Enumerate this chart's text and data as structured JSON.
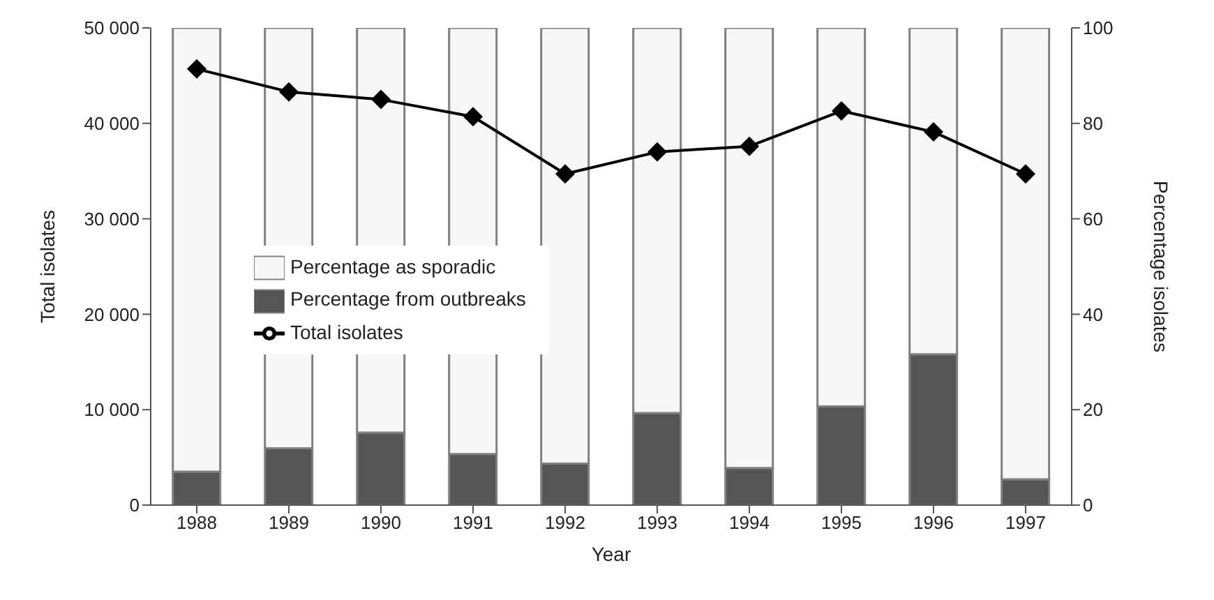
{
  "chart_data": {
    "type": "bar",
    "stacked": true,
    "xlabel": "Year",
    "ylabel": "Total isolates",
    "y2label": "Percentage isolates",
    "categories": [
      "1988",
      "1989",
      "1990",
      "1991",
      "1992",
      "1993",
      "1994",
      "1995",
      "1996",
      "1997"
    ],
    "series": [
      {
        "name": "Percentage from outbreaks",
        "color": "#555555",
        "axis": "y2",
        "values": [
          7.0,
          11.9,
          15.2,
          10.7,
          8.7,
          19.3,
          7.8,
          20.7,
          31.6,
          5.4
        ]
      },
      {
        "name": "Percentage as sporadic",
        "color": "#f7f7f7",
        "axis": "y2",
        "values": [
          93.0,
          88.1,
          84.8,
          89.3,
          91.3,
          80.7,
          92.2,
          79.3,
          68.4,
          94.6
        ]
      },
      {
        "name": "Total isolates",
        "type": "line",
        "color": "#000000",
        "axis": "y",
        "marker": "diamond",
        "values": [
          45700,
          43300,
          42500,
          40700,
          34700,
          37000,
          37600,
          41300,
          39100,
          34700
        ]
      }
    ],
    "ylim": [
      0,
      50000
    ],
    "yticks": [
      0,
      {
        "value": 10000,
        "label": "10 000"
      },
      {
        "value": 20000,
        "label": "20 000"
      },
      {
        "value": 30000,
        "label": "30 000"
      },
      {
        "value": 40000,
        "label": "40 000"
      },
      {
        "value": 50000,
        "label": "50 000"
      }
    ],
    "y2lim": [
      0,
      100
    ],
    "y2ticks": [
      0,
      20,
      40,
      60,
      80,
      100
    ],
    "grid": false,
    "legend": "left"
  }
}
